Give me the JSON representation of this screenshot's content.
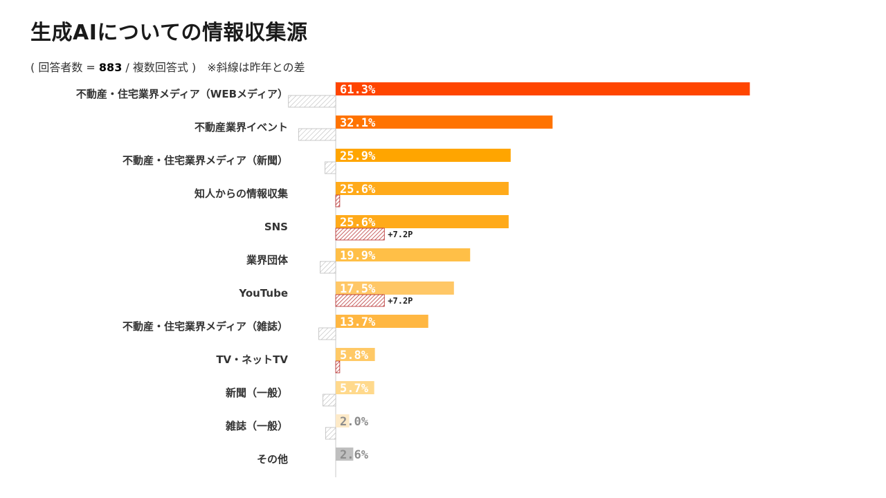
{
  "header": {
    "title": "生成AIについての情報収集源",
    "subtitle_pre": "( 回答者数 = ",
    "subtitle_n": "883",
    "subtitle_post": " / 複数回答式 )　※斜線は昨年との差"
  },
  "colors": {
    "hatch_negative": "#bbbbbb",
    "hatch_positive": "#b22222"
  },
  "chart_data": {
    "type": "bar",
    "orientation": "horizontal",
    "title": "生成AIについての情報収集源",
    "categories": [
      "不動産・住宅業界メディア（WEBメディア）",
      "不動産業界イベント",
      "不動産・住宅業界メディア（新聞）",
      "知人からの情報収集",
      "SNS",
      "業界団体",
      "YouTube",
      "不動産・住宅業界メディア（雑誌）",
      "TV・ネットTV",
      "新聞（一般）",
      "雑誌（一般）",
      "その他"
    ],
    "values": [
      61.3,
      32.1,
      25.9,
      25.6,
      25.6,
      19.9,
      17.5,
      13.7,
      5.8,
      5.7,
      2.0,
      2.6
    ],
    "value_labels": [
      "61.3%",
      "32.1%",
      "25.9%",
      "25.6%",
      "25.6%",
      "19.9%",
      "17.5%",
      "13.7%",
      "5.8%",
      "5.7%",
      "2.0%",
      "2.6%"
    ],
    "bar_colors": [
      "#ff4500",
      "#ff7300",
      "#ffa500",
      "#ffaa1a",
      "#ffaa1a",
      "#ffbf47",
      "#ffc766",
      "#ffb742",
      "#ffc966",
      "#ffd98c",
      "#fdeac8",
      "#bfbfbf"
    ],
    "label_colors": [
      "#ffffff",
      "#ffffff",
      "#ffffff",
      "#ffffff",
      "#ffffff",
      "#ffffff",
      "#ffffff",
      "#ffffff",
      "#ffffff",
      "#ffffff",
      "#8c8c8c",
      "#8c8c8c"
    ],
    "diff_from_last_year": [
      -7,
      -5.5,
      -1.6,
      0.6,
      7.2,
      -2.3,
      7.2,
      -2.5,
      0.6,
      -1.9,
      -1.5,
      0
    ],
    "diff_labels": [
      "",
      "",
      "",
      "",
      "+7.2P",
      "",
      "+7.2P",
      "",
      "",
      "",
      "",
      ""
    ],
    "xlim": [
      0,
      70
    ],
    "legend": "none",
    "grid": false
  }
}
